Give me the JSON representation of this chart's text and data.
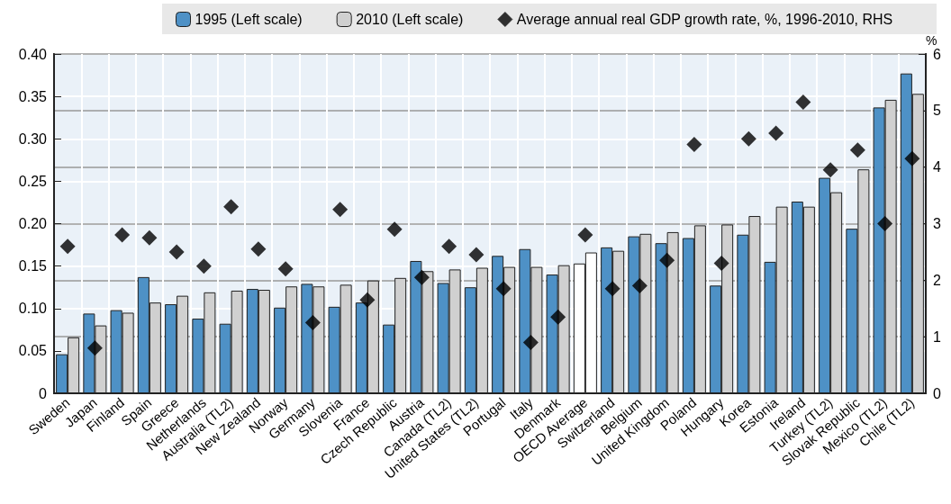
{
  "chart_data": {
    "type": "bar",
    "categories": [
      "Sweden",
      "Japan",
      "Finland",
      "Spain",
      "Greece",
      "Netherlands",
      "Australia (TL2)",
      "New Zealand",
      "Norway",
      "Germany",
      "Slovenia",
      "France",
      "Czech Republic",
      "Austria",
      "Canada (TL2)",
      "United States (TL2)",
      "Portugal",
      "Italy",
      "Denmark",
      "OECD Average",
      "Switzerland",
      "Belgium",
      "United Kingdom",
      "Poland",
      "Hungary",
      "Korea",
      "Estonia",
      "Ireland",
      "Turkey (TL2)",
      "Slovak Republic",
      "Mexico (TL2)",
      "Chile (TL2)"
    ],
    "series": [
      {
        "name": "1995 (Left scale)",
        "color": "#4e91c6",
        "colors": [
          "#4e91c6",
          "#4e91c6",
          "#4e91c6",
          "#4e91c6",
          "#4e91c6",
          "#4e91c6",
          "#4e91c6",
          "#4e91c6",
          "#4e91c6",
          "#4e91c6",
          "#4e91c6",
          "#4e91c6",
          "#4e91c6",
          "#4e91c6",
          "#4e91c6",
          "#4e91c6",
          "#4e91c6",
          "#4e91c6",
          "#4e91c6",
          "#ffffff",
          "#4e91c6",
          "#4e91c6",
          "#4e91c6",
          "#4e91c6",
          "#4e91c6",
          "#4e91c6",
          "#4e91c6",
          "#4e91c6",
          "#4e91c6",
          "#4e91c6",
          "#4e91c6",
          "#4e91c6"
        ],
        "values": [
          0.046,
          0.094,
          0.098,
          0.137,
          0.105,
          0.088,
          0.082,
          0.123,
          0.101,
          0.129,
          0.102,
          0.107,
          0.081,
          0.156,
          0.13,
          0.125,
          0.162,
          0.17,
          0.14,
          0.153,
          0.172,
          0.185,
          0.177,
          0.183,
          0.127,
          0.187,
          0.155,
          0.226,
          0.254,
          0.194,
          0.337,
          0.377
        ]
      },
      {
        "name": "2010 (Left scale)",
        "color": "#d0d0d0",
        "colors": [
          "#d0d0d0",
          "#d0d0d0",
          "#d0d0d0",
          "#d0d0d0",
          "#d0d0d0",
          "#d0d0d0",
          "#d0d0d0",
          "#d0d0d0",
          "#d0d0d0",
          "#d0d0d0",
          "#d0d0d0",
          "#d0d0d0",
          "#d0d0d0",
          "#d0d0d0",
          "#d0d0d0",
          "#d0d0d0",
          "#d0d0d0",
          "#d0d0d0",
          "#d0d0d0",
          "#ffffff",
          "#d0d0d0",
          "#d0d0d0",
          "#d0d0d0",
          "#d0d0d0",
          "#d0d0d0",
          "#d0d0d0",
          "#d0d0d0",
          "#d0d0d0",
          "#d0d0d0",
          "#d0d0d0",
          "#d0d0d0",
          "#d0d0d0"
        ],
        "values": [
          0.066,
          0.08,
          0.095,
          0.107,
          0.115,
          0.119,
          0.121,
          0.122,
          0.126,
          0.126,
          0.128,
          0.133,
          0.136,
          0.144,
          0.146,
          0.148,
          0.149,
          0.149,
          0.151,
          0.166,
          0.168,
          0.188,
          0.19,
          0.198,
          0.199,
          0.209,
          0.22,
          0.22,
          0.237,
          0.264,
          0.346,
          0.353
        ]
      },
      {
        "name": "Average annual real GDP growth rate, %, 1996-2010, RHS",
        "type": "scatter",
        "axis": "y2",
        "marker": "diamond",
        "color": "#000000",
        "values": [
          2.6,
          0.8,
          2.8,
          2.75,
          2.5,
          2.25,
          3.3,
          2.55,
          2.2,
          1.25,
          3.25,
          1.65,
          2.9,
          2.05,
          2.6,
          2.45,
          1.85,
          0.9,
          1.35,
          2.8,
          1.85,
          1.9,
          2.35,
          4.4,
          2.3,
          4.5,
          4.6,
          5.15,
          3.95,
          4.3,
          3.0,
          4.15
        ]
      }
    ],
    "y2label": "%",
    "ylim": [
      0,
      0.4
    ],
    "yticks": [
      {
        "value": 0,
        "label": "0"
      },
      {
        "value": 0.05,
        "label": "0.05"
      },
      {
        "value": 0.1,
        "label": "0.10"
      },
      {
        "value": 0.15,
        "label": "0.15"
      },
      {
        "value": 0.2,
        "label": "0.20"
      },
      {
        "value": 0.25,
        "label": "0.25"
      },
      {
        "value": 0.3,
        "label": "0.30"
      },
      {
        "value": 0.35,
        "label": "0.35"
      },
      {
        "value": 0.4,
        "label": "0.40"
      }
    ],
    "y2lim": [
      0,
      6
    ],
    "y2ticks": [
      0,
      1,
      2,
      3,
      4,
      5,
      6
    ],
    "grid": true,
    "legend": "top"
  }
}
